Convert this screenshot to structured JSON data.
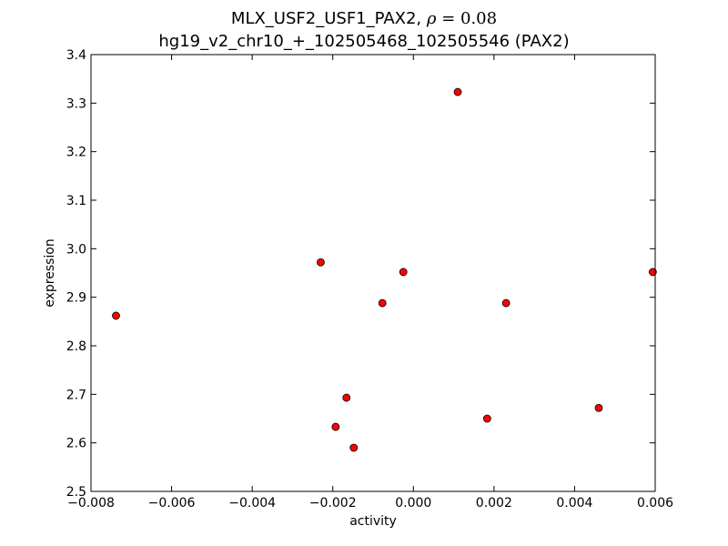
{
  "chart_data": {
    "type": "scatter",
    "title": {
      "line1_prefix": "MLX_USF2_USF1_PAX2, ",
      "rho_symbol": "ρ",
      "rho_eq": " = ",
      "rho_value": "0.08",
      "line2": "hg19_v2_chr10_+_102505468_102505546 (PAX2)"
    },
    "xlabel": "activity",
    "ylabel": "expression",
    "xlim": [
      -0.008,
      0.006
    ],
    "ylim": [
      2.5,
      3.4
    ],
    "xticks": [
      {
        "value": -0.008,
        "label": "−0.008"
      },
      {
        "value": -0.006,
        "label": "−0.006"
      },
      {
        "value": -0.004,
        "label": "−0.004"
      },
      {
        "value": -0.002,
        "label": "−0.002"
      },
      {
        "value": 0.0,
        "label": "0.000"
      },
      {
        "value": 0.002,
        "label": "0.002"
      },
      {
        "value": 0.004,
        "label": "0.004"
      },
      {
        "value": 0.006,
        "label": "0.006"
      }
    ],
    "yticks": [
      {
        "value": 2.5,
        "label": "2.5"
      },
      {
        "value": 2.6,
        "label": "2.6"
      },
      {
        "value": 2.7,
        "label": "2.7"
      },
      {
        "value": 2.8,
        "label": "2.8"
      },
      {
        "value": 2.9,
        "label": "2.9"
      },
      {
        "value": 3.0,
        "label": "3.0"
      },
      {
        "value": 3.1,
        "label": "3.1"
      },
      {
        "value": 3.2,
        "label": "3.2"
      },
      {
        "value": 3.3,
        "label": "3.3"
      },
      {
        "value": 3.4,
        "label": "3.4"
      }
    ],
    "points": [
      {
        "x": -0.00738,
        "y": 2.862
      },
      {
        "x": -0.0023,
        "y": 2.972
      },
      {
        "x": -0.00193,
        "y": 2.633
      },
      {
        "x": -0.00166,
        "y": 2.693
      },
      {
        "x": -0.00148,
        "y": 2.59
      },
      {
        "x": -0.00077,
        "y": 2.888
      },
      {
        "x": -0.00025,
        "y": 2.952
      },
      {
        "x": 0.0011,
        "y": 3.323
      },
      {
        "x": 0.00183,
        "y": 2.65
      },
      {
        "x": 0.0023,
        "y": 2.888
      },
      {
        "x": 0.0046,
        "y": 2.672
      },
      {
        "x": 0.00594,
        "y": 2.952
      }
    ],
    "grid": false,
    "marker_color": "#ff0000",
    "marker_edge_color": "#000000"
  }
}
